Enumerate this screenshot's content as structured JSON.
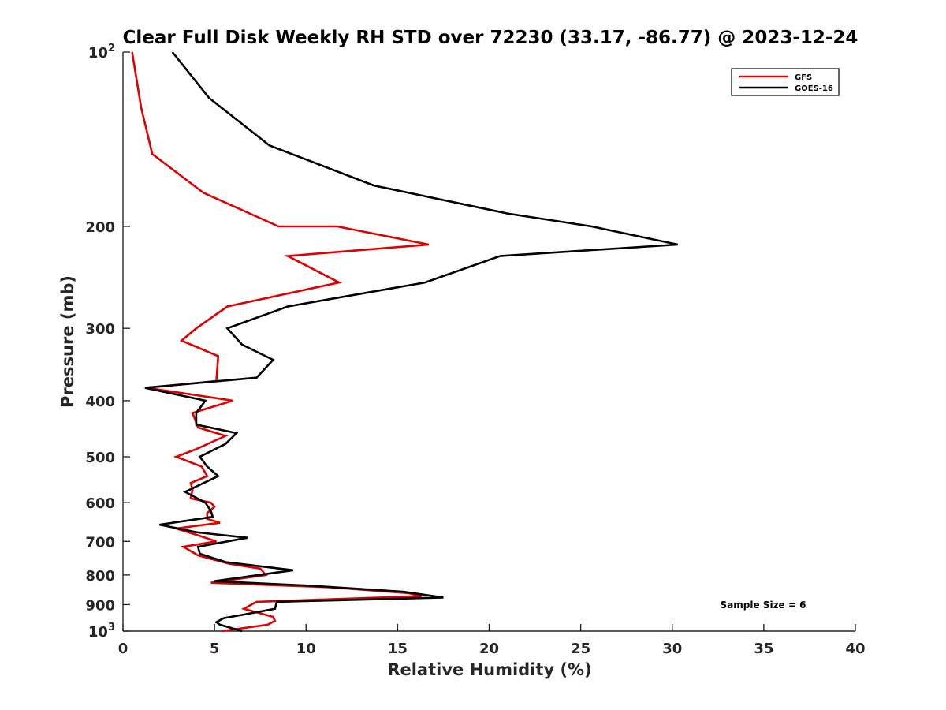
{
  "chart_data": {
    "type": "line",
    "title": "Clear Full Disk Weekly RH STD over 72230 (33.17, -86.77) @ 2023-12-24",
    "xlabel": "Relative Humidity (%)",
    "ylabel": "Pressure (mb)",
    "xlim": [
      0,
      40
    ],
    "ylim": [
      100,
      1000
    ],
    "yscale": "log",
    "y_reversed": true,
    "grid": false,
    "legend_position": "top-right",
    "xticks": [
      0,
      5,
      10,
      15,
      20,
      25,
      30,
      35,
      40
    ],
    "xtick_labels": [
      "0",
      "5",
      "10",
      "15",
      "20",
      "25",
      "30",
      "35",
      "40"
    ],
    "yticks": [
      100,
      200,
      300,
      400,
      500,
      600,
      700,
      800,
      900,
      1000
    ],
    "ytick_labels": [
      {
        "base": "10",
        "exp": "2"
      },
      {
        "base": "200",
        "exp": ""
      },
      {
        "base": "300",
        "exp": ""
      },
      {
        "base": "400",
        "exp": ""
      },
      {
        "base": "500",
        "exp": ""
      },
      {
        "base": "600",
        "exp": ""
      },
      {
        "base": "700",
        "exp": ""
      },
      {
        "base": "800",
        "exp": ""
      },
      {
        "base": "900",
        "exp": ""
      },
      {
        "base": "10",
        "exp": "3"
      }
    ],
    "annotation": "Sample Size = 6",
    "series": [
      {
        "name": "GFS",
        "color": "#e00000",
        "points": [
          [
            0.5,
            100
          ],
          [
            1.0,
            125
          ],
          [
            1.6,
            150
          ],
          [
            4.4,
            175
          ],
          [
            8.5,
            200
          ],
          [
            11.7,
            200
          ],
          [
            16.7,
            215
          ],
          [
            9.0,
            225
          ],
          [
            11.8,
            250
          ],
          [
            5.7,
            275
          ],
          [
            4.0,
            300
          ],
          [
            3.2,
            315
          ],
          [
            5.2,
            335
          ],
          [
            5.1,
            370
          ],
          [
            1.3,
            380
          ],
          [
            6.0,
            400
          ],
          [
            3.8,
            420
          ],
          [
            4.1,
            445
          ],
          [
            5.6,
            460
          ],
          [
            4.0,
            485
          ],
          [
            2.9,
            500
          ],
          [
            4.3,
            520
          ],
          [
            4.6,
            540
          ],
          [
            3.7,
            555
          ],
          [
            3.8,
            570
          ],
          [
            3.7,
            590
          ],
          [
            4.8,
            600
          ],
          [
            5.0,
            610
          ],
          [
            4.6,
            625
          ],
          [
            4.6,
            640
          ],
          [
            5.3,
            650
          ],
          [
            2.9,
            665
          ],
          [
            3.9,
            680
          ],
          [
            5.1,
            700
          ],
          [
            3.3,
            715
          ],
          [
            4.1,
            740
          ],
          [
            5.8,
            765
          ],
          [
            7.5,
            780
          ],
          [
            7.8,
            800
          ],
          [
            4.8,
            825
          ],
          [
            11.3,
            840
          ],
          [
            15.6,
            860
          ],
          [
            16.3,
            870
          ],
          [
            7.3,
            890
          ],
          [
            6.6,
            915
          ],
          [
            8.2,
            945
          ],
          [
            8.3,
            960
          ],
          [
            7.9,
            975
          ],
          [
            5.4,
            1000
          ]
        ]
      },
      {
        "name": "GOES-16",
        "color": "#000000",
        "points": [
          [
            2.7,
            100
          ],
          [
            4.7,
            120
          ],
          [
            8.0,
            145
          ],
          [
            13.7,
            170
          ],
          [
            21.0,
            190
          ],
          [
            25.6,
            200
          ],
          [
            30.3,
            215
          ],
          [
            20.6,
            225
          ],
          [
            16.5,
            250
          ],
          [
            9.0,
            275
          ],
          [
            5.7,
            300
          ],
          [
            6.5,
            320
          ],
          [
            8.2,
            340
          ],
          [
            7.3,
            365
          ],
          [
            1.2,
            380
          ],
          [
            4.5,
            400
          ],
          [
            4.0,
            420
          ],
          [
            4.0,
            440
          ],
          [
            6.2,
            455
          ],
          [
            5.6,
            475
          ],
          [
            4.2,
            500
          ],
          [
            4.6,
            520
          ],
          [
            5.2,
            540
          ],
          [
            4.4,
            555
          ],
          [
            3.4,
            575
          ],
          [
            4.5,
            600
          ],
          [
            4.8,
            620
          ],
          [
            4.9,
            635
          ],
          [
            2.0,
            655
          ],
          [
            4.0,
            675
          ],
          [
            6.8,
            690
          ],
          [
            4.1,
            715
          ],
          [
            4.2,
            735
          ],
          [
            5.6,
            760
          ],
          [
            7.8,
            775
          ],
          [
            9.3,
            785
          ],
          [
            5.0,
            820
          ],
          [
            10.3,
            835
          ],
          [
            15.3,
            855
          ],
          [
            17.5,
            875
          ],
          [
            8.4,
            890
          ],
          [
            8.3,
            915
          ],
          [
            6.7,
            935
          ],
          [
            5.5,
            950
          ],
          [
            5.1,
            965
          ],
          [
            5.3,
            975
          ],
          [
            6.5,
            1000
          ]
        ]
      }
    ]
  }
}
